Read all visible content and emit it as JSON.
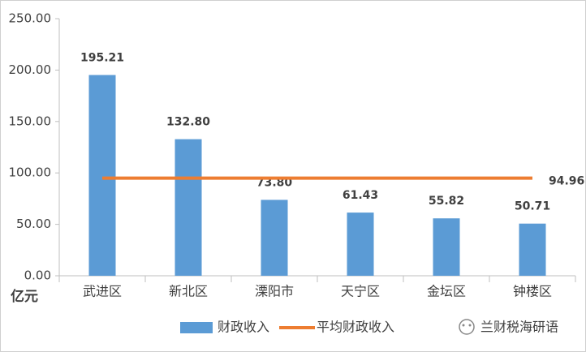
{
  "chart_data": {
    "type": "bar",
    "y_axis_unit": "亿元",
    "categories": [
      "武进区",
      "新北区",
      "溧阳市",
      "天宁区",
      "金坛区",
      "钟楼区"
    ],
    "series": [
      {
        "name": "财政收入",
        "type": "bar",
        "color": "#5b9bd5",
        "values": [
          195.21,
          132.8,
          73.8,
          61.43,
          55.82,
          50.71
        ],
        "value_labels": [
          "195.21",
          "132.80",
          "73.80",
          "61.43",
          "55.82",
          "50.71"
        ]
      },
      {
        "name": "平均财政收入",
        "type": "line",
        "color": "#ed7d31",
        "values": [
          94.96,
          94.96,
          94.96,
          94.96,
          94.96,
          94.96
        ]
      }
    ],
    "ylim": [
      0,
      250
    ],
    "yticks": [
      {
        "value": 0,
        "label": "0.00"
      },
      {
        "value": 50,
        "label": "50.00"
      },
      {
        "value": 100,
        "label": "100.00"
      },
      {
        "value": 150,
        "label": "150.00"
      },
      {
        "value": 200,
        "label": "200.00"
      },
      {
        "value": 250,
        "label": "250.00"
      }
    ],
    "legend": "bottom",
    "watermark": "兰财税海研语"
  }
}
